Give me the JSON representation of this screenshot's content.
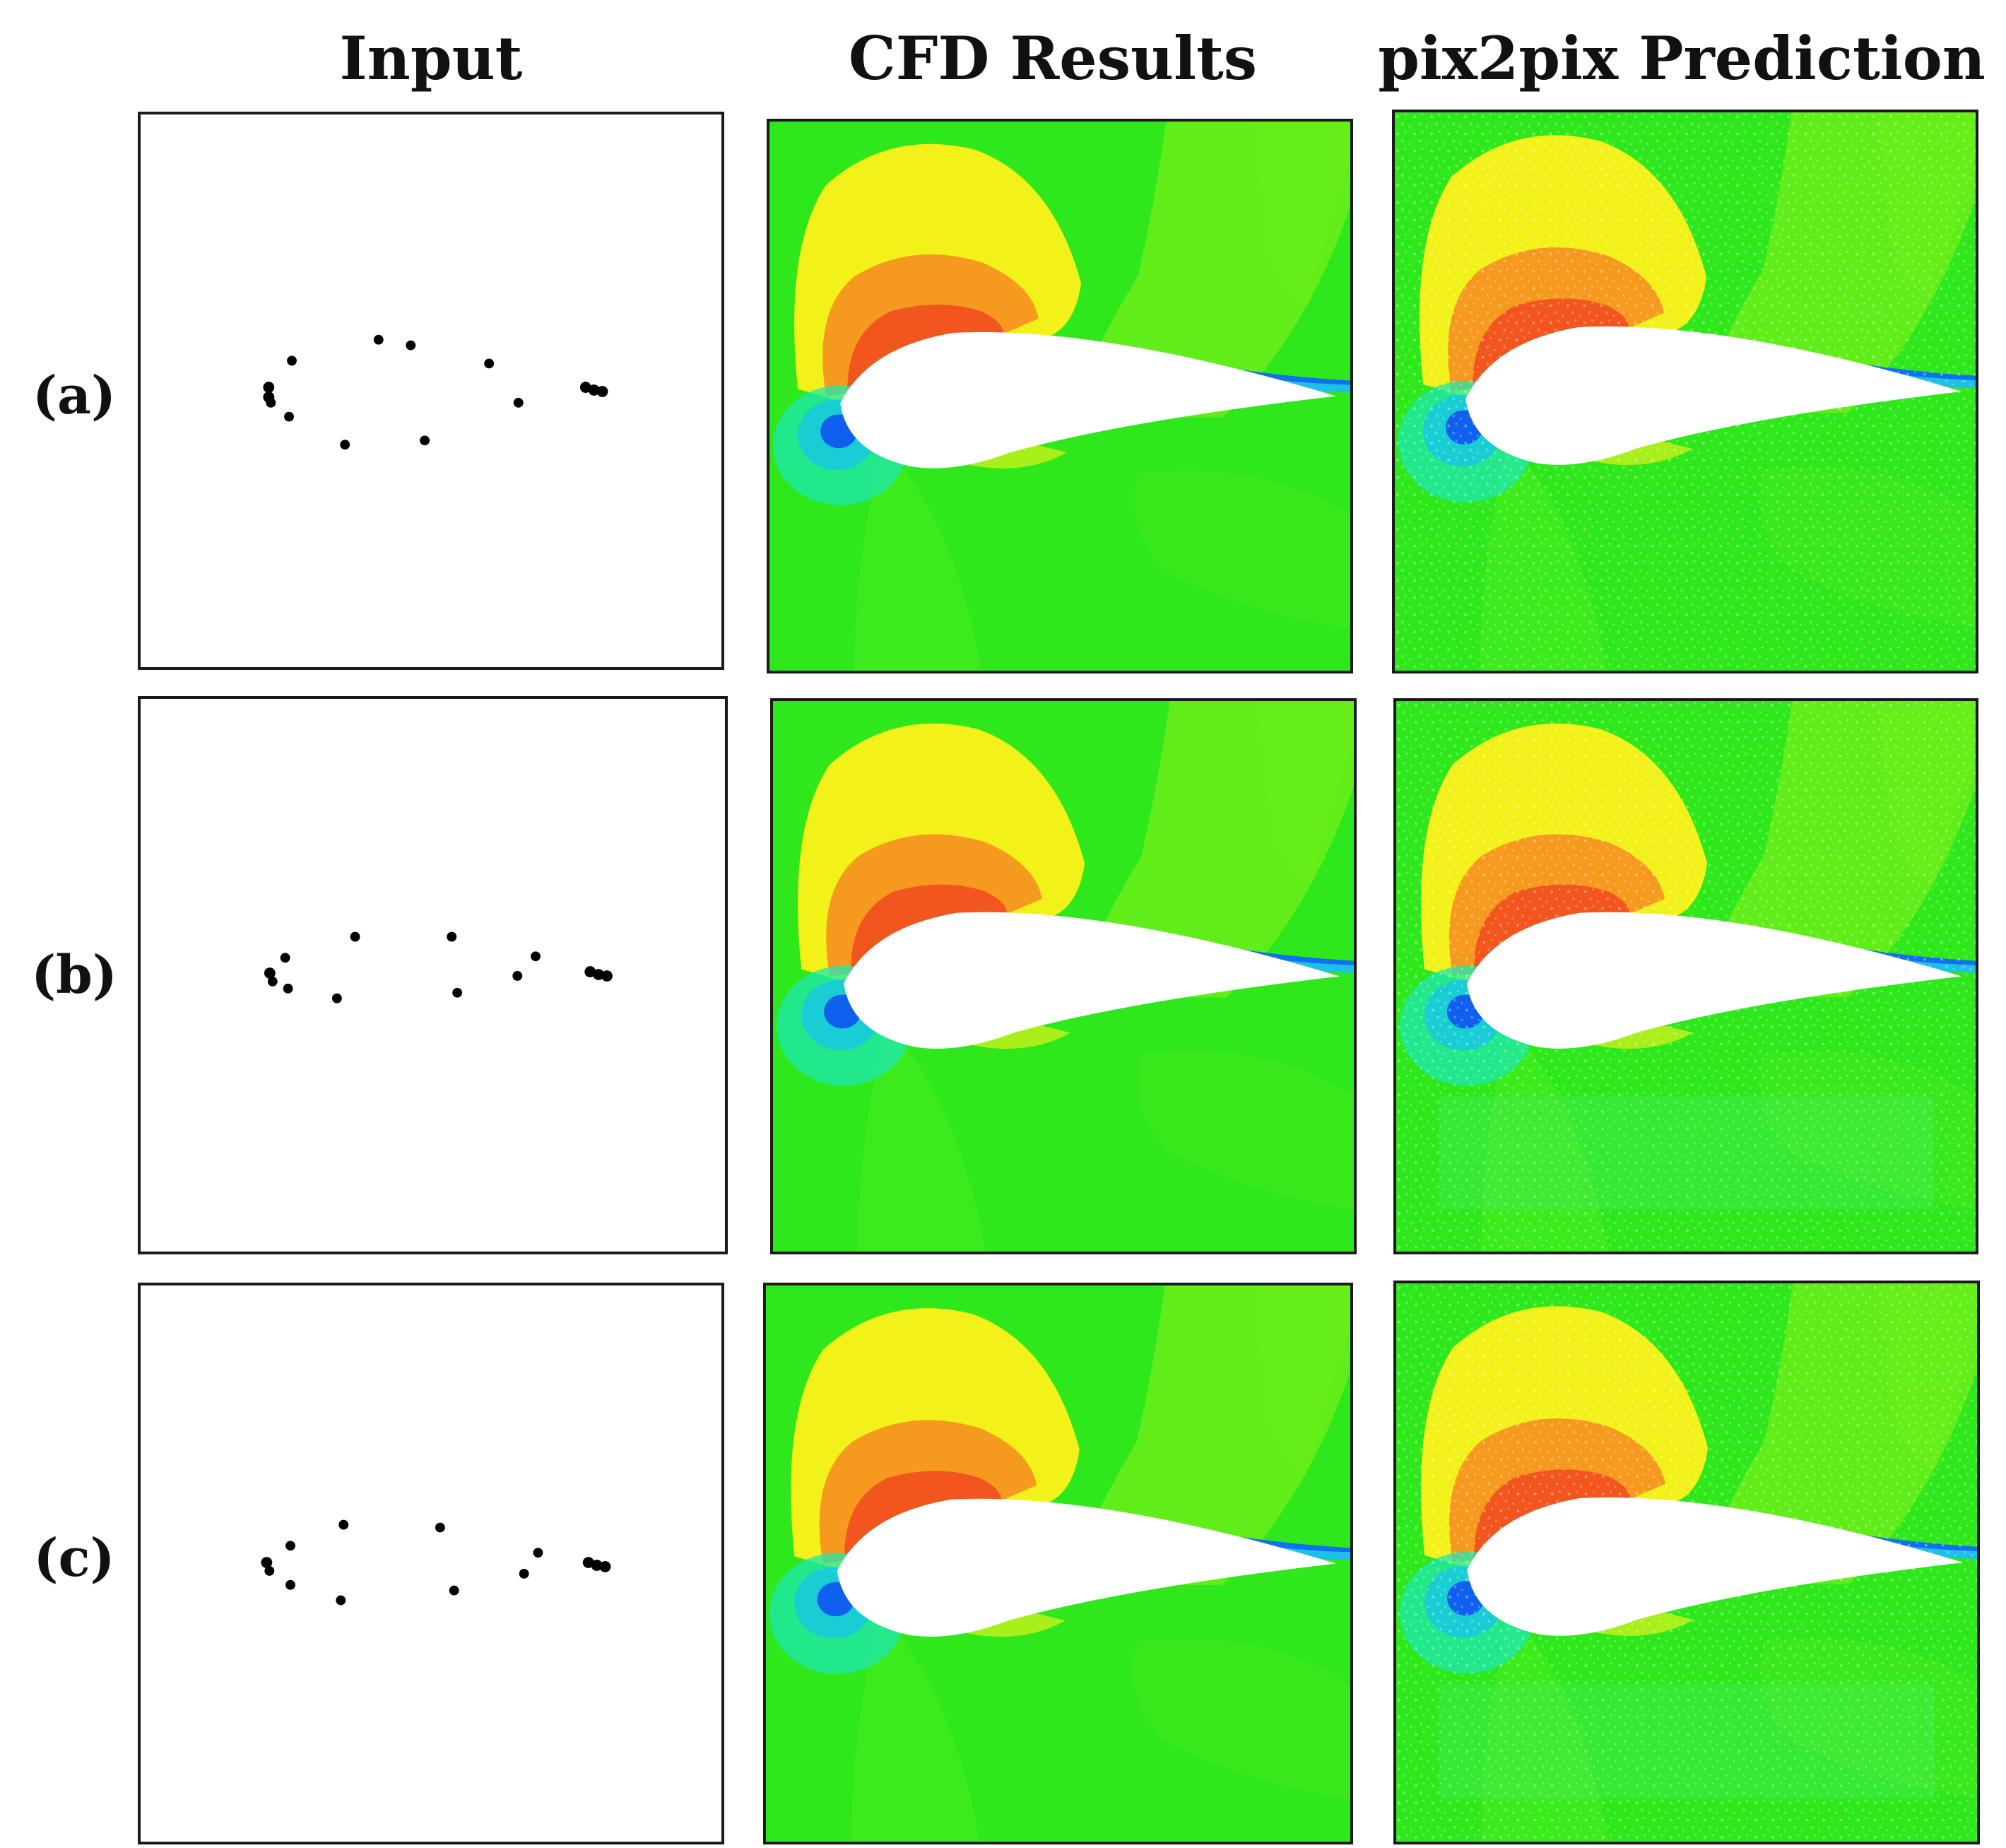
{
  "figure": {
    "column_headers": [
      "Input",
      "CFD Results",
      "pix2pix Prediction"
    ],
    "rows": [
      {
        "label": "(a)"
      },
      {
        "label": "(b)"
      },
      {
        "label": "(c)"
      }
    ]
  },
  "colors": {
    "background_green": "#2ee81c",
    "contour_lime": "#8cf018",
    "contour_yellow": "#f2f21a",
    "contour_orange": "#f59a1e",
    "contour_red": "#f2561e",
    "contour_cyan": "#1ee8b0",
    "contour_blue": "#1060f0",
    "airfoil": "#ffffff",
    "points": "#000000"
  }
}
